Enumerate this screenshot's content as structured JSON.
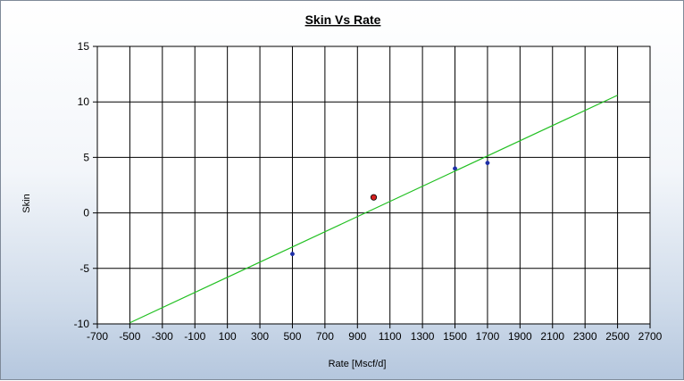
{
  "chart_data": {
    "type": "scatter",
    "title": "Skin Vs Rate",
    "xlabel": "Rate [Mscf/d]",
    "ylabel": "Skin",
    "xlim": [
      -700,
      2700
    ],
    "ylim": [
      -10,
      15
    ],
    "xticks": [
      "-700",
      "-500",
      "-300",
      "-100",
      "100",
      "300",
      "500",
      "700",
      "900",
      "1100",
      "1300",
      "1500",
      "1700",
      "1900",
      "2100",
      "2300",
      "2500",
      "2700"
    ],
    "yticks": [
      "15",
      "10",
      "5",
      "0",
      "-5",
      "-10"
    ],
    "grid": true,
    "series": [
      {
        "kind": "points",
        "color": "#1f2fa8",
        "points": [
          {
            "x": 500,
            "y": -3.7
          },
          {
            "x": 1500,
            "y": 4.0
          },
          {
            "x": 1700,
            "y": 4.5
          }
        ]
      },
      {
        "kind": "points",
        "color": "#d42020",
        "points": [
          {
            "x": 1000,
            "y": 1.4
          }
        ]
      },
      {
        "kind": "line",
        "color": "#22c022",
        "points": [
          {
            "x": -500,
            "y": -9.9
          },
          {
            "x": 2500,
            "y": 10.6
          }
        ]
      }
    ]
  }
}
